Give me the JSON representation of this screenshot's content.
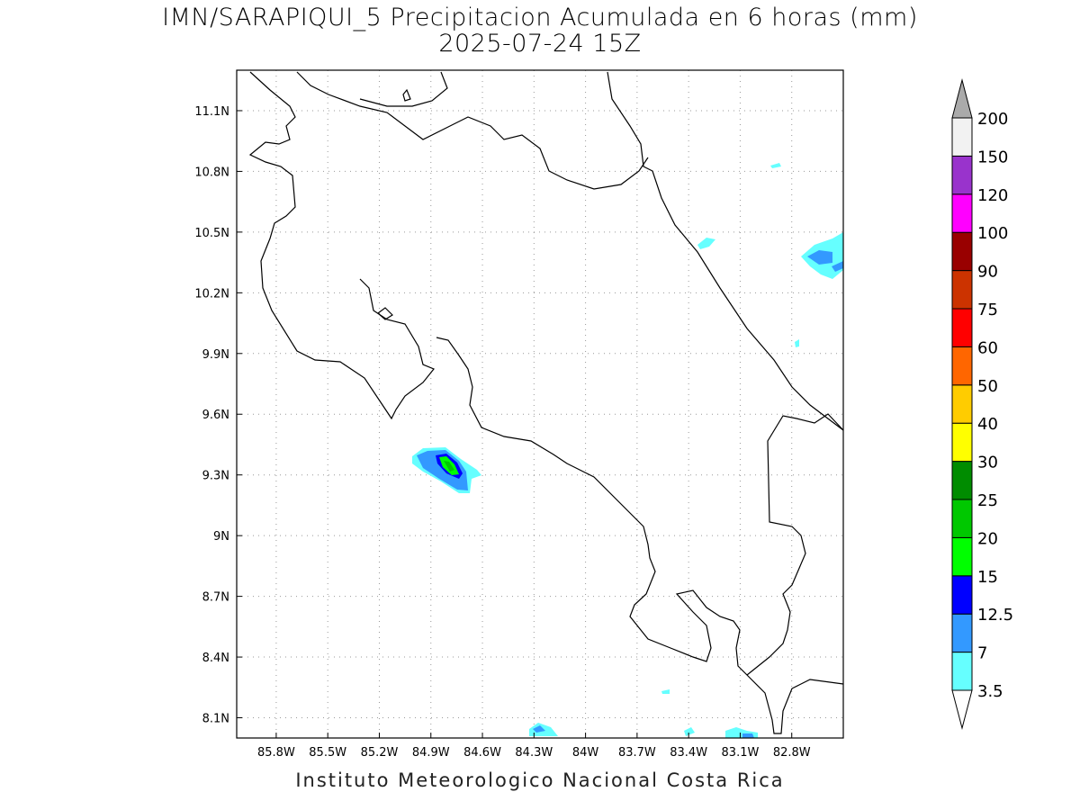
{
  "title": "IMN/SARAPIQUI_5 Precipitacion Acumulada en 6 horas (mm)",
  "subtitle": "2025-07-24 15Z",
  "footer": "Instituto Meteorologico Nacional Costa Rica",
  "map": {
    "region": "Costa Rica",
    "lon_range": [
      -86.03,
      -82.5
    ],
    "lat_range": [
      8.0,
      11.3
    ],
    "grid": "dotted",
    "lon_ticks": [
      {
        "value": -85.8,
        "label": "85.8W"
      },
      {
        "value": -85.5,
        "label": "85.5W"
      },
      {
        "value": -85.2,
        "label": "85.2W"
      },
      {
        "value": -84.9,
        "label": "84.9W"
      },
      {
        "value": -84.6,
        "label": "84.6W"
      },
      {
        "value": -84.3,
        "label": "84.3W"
      },
      {
        "value": -84.0,
        "label": "84W"
      },
      {
        "value": -83.7,
        "label": "83.7W"
      },
      {
        "value": -83.4,
        "label": "83.4W"
      },
      {
        "value": -83.1,
        "label": "83.1W"
      },
      {
        "value": -82.8,
        "label": "82.8W"
      }
    ],
    "lat_ticks": [
      {
        "value": 11.1,
        "label": "11.1N"
      },
      {
        "value": 10.8,
        "label": "10.8N"
      },
      {
        "value": 10.5,
        "label": "10.5N"
      },
      {
        "value": 10.2,
        "label": "10.2N"
      },
      {
        "value": 9.9,
        "label": "9.9N"
      },
      {
        "value": 9.6,
        "label": "9.6N"
      },
      {
        "value": 9.3,
        "label": "9.3N"
      },
      {
        "value": 9.0,
        "label": "9N"
      },
      {
        "value": 8.7,
        "label": "8.7N"
      },
      {
        "value": 8.4,
        "label": "8.4N"
      },
      {
        "value": 8.1,
        "label": "8.1N"
      }
    ]
  },
  "colorbar": {
    "labels": [
      "3.5",
      "7",
      "12.5",
      "15",
      "20",
      "25",
      "30",
      "40",
      "50",
      "60",
      "75",
      "90",
      "100",
      "120",
      "150",
      "200"
    ],
    "colors": [
      "#66ffff",
      "#3399ff",
      "#0000ff",
      "#00ff00",
      "#00c800",
      "#008c00",
      "#ffff00",
      "#ffcc00",
      "#ff6600",
      "#ff0000",
      "#cc3300",
      "#990000",
      "#ff00ff",
      "#9933cc",
      "#f2f2f2"
    ],
    "under_color": "#ffffff",
    "over_color": "#aaaaaa"
  }
}
